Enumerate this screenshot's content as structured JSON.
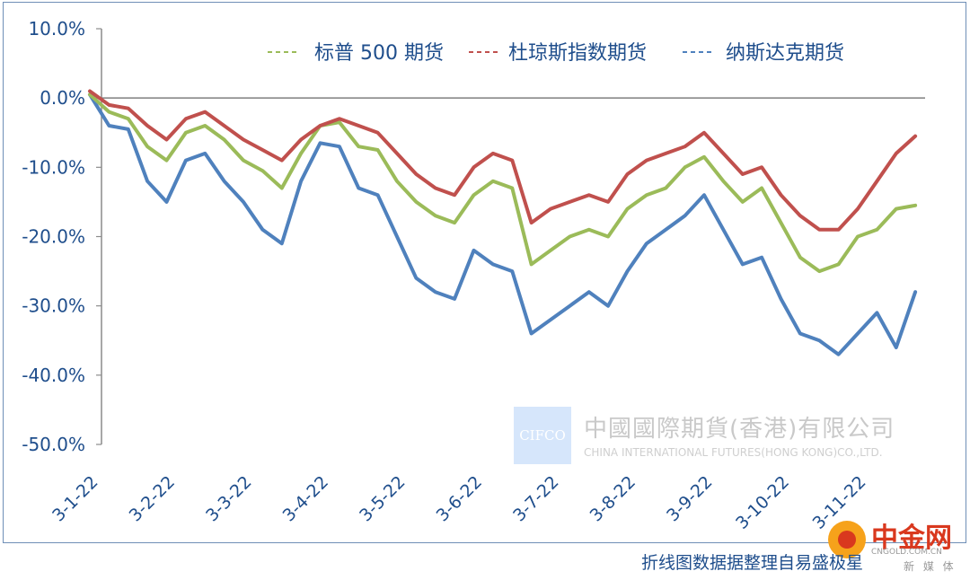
{
  "chart_data": {
    "type": "line",
    "title": "",
    "xlabel": "",
    "ylabel": "",
    "ylim": [
      -50,
      10
    ],
    "yticks": [
      "10.0%",
      "0.0%",
      "-10.0%",
      "-20.0%",
      "-30.0%",
      "-40.0%",
      "-50.0%"
    ],
    "ytick_values": [
      10,
      0,
      -10,
      -20,
      -30,
      -40,
      -50
    ],
    "xticks": [
      "3-1-22",
      "3-2-22",
      "3-3-22",
      "3-4-22",
      "3-5-22",
      "3-6-22",
      "3-7-22",
      "3-8-22",
      "3-9-22",
      "3-10-22",
      "3-11-22"
    ],
    "x_range": [
      0,
      11
    ],
    "grid": false,
    "legend_position": "top",
    "series": [
      {
        "name": "标普 500 期货",
        "color": "#9bbb59",
        "x": [
          0,
          0.25,
          0.5,
          0.75,
          1.0,
          1.25,
          1.5,
          1.75,
          2.0,
          2.25,
          2.5,
          2.75,
          3.0,
          3.25,
          3.5,
          3.75,
          4.0,
          4.25,
          4.5,
          4.75,
          5.0,
          5.25,
          5.5,
          5.75,
          6.0,
          6.25,
          6.5,
          6.75,
          7.0,
          7.25,
          7.5,
          7.75,
          8.0,
          8.25,
          8.5,
          8.75,
          9.0,
          9.25,
          9.5,
          9.75,
          10.0,
          10.25,
          10.5,
          10.75
        ],
        "values": [
          0.5,
          -2,
          -3,
          -7,
          -9,
          -5,
          -4,
          -6,
          -9,
          -10.5,
          -13,
          -8,
          -4,
          -3.5,
          -7,
          -7.5,
          -12,
          -15,
          -17,
          -18,
          -14,
          -12,
          -13,
          -24,
          -22,
          -20,
          -19,
          -20,
          -16,
          -14,
          -13,
          -10,
          -8.5,
          -12,
          -15,
          -13,
          -18,
          -23,
          -25,
          -24,
          -20,
          -19,
          -16,
          -15.5
        ]
      },
      {
        "name": "杜琼斯指数期货",
        "color": "#c0504d",
        "x": [
          0,
          0.25,
          0.5,
          0.75,
          1.0,
          1.25,
          1.5,
          1.75,
          2.0,
          2.25,
          2.5,
          2.75,
          3.0,
          3.25,
          3.5,
          3.75,
          4.0,
          4.25,
          4.5,
          4.75,
          5.0,
          5.25,
          5.5,
          5.75,
          6.0,
          6.25,
          6.5,
          6.75,
          7.0,
          7.25,
          7.5,
          7.75,
          8.0,
          8.25,
          8.5,
          8.75,
          9.0,
          9.25,
          9.5,
          9.75,
          10.0,
          10.25,
          10.5,
          10.75
        ],
        "values": [
          1,
          -1,
          -1.5,
          -4,
          -6,
          -3,
          -2,
          -4,
          -6,
          -7.5,
          -9,
          -6,
          -4,
          -3,
          -4,
          -5,
          -8,
          -11,
          -13,
          -14,
          -10,
          -8,
          -9,
          -18,
          -16,
          -15,
          -14,
          -15,
          -11,
          -9,
          -8,
          -7,
          -5,
          -8,
          -11,
          -10,
          -14,
          -17,
          -19,
          -19,
          -16,
          -12,
          -8,
          -5.5
        ]
      },
      {
        "name": "纳斯达克期货",
        "color": "#4f81bd",
        "x": [
          0,
          0.25,
          0.5,
          0.75,
          1.0,
          1.25,
          1.5,
          1.75,
          2.0,
          2.25,
          2.5,
          2.75,
          3.0,
          3.25,
          3.5,
          3.75,
          4.0,
          4.25,
          4.5,
          4.75,
          5.0,
          5.25,
          5.5,
          5.75,
          6.0,
          6.25,
          6.5,
          6.75,
          7.0,
          7.25,
          7.5,
          7.75,
          8.0,
          8.25,
          8.5,
          8.75,
          9.0,
          9.25,
          9.5,
          9.75,
          10.0,
          10.25,
          10.5,
          10.75
        ],
        "values": [
          0.5,
          -4,
          -4.5,
          -12,
          -15,
          -9,
          -8,
          -12,
          -15,
          -19,
          -21,
          -12,
          -6.5,
          -7,
          -13,
          -14,
          -20,
          -26,
          -28,
          -29,
          -22,
          -24,
          -25,
          -34,
          -32,
          -30,
          -28,
          -30,
          -25,
          -21,
          -19,
          -17,
          -14,
          -19,
          -24,
          -23,
          -29,
          -34,
          -35,
          -37,
          -34,
          -31,
          -36,
          -28
        ]
      }
    ]
  },
  "footer": {
    "caption": "折线图数据据整理自易盛极星"
  },
  "watermark": {
    "logo_text": "CIFCO",
    "company_cn": "中國國際期貨(香港)有限公司",
    "company_en": "CHINA INTERNATIONAL FUTURES(HONG KONG)CO.,LTD."
  },
  "site_logo": {
    "name": "中金网",
    "url": "CNGOLD.COM.CN",
    "tagline": "新 媒 体"
  }
}
